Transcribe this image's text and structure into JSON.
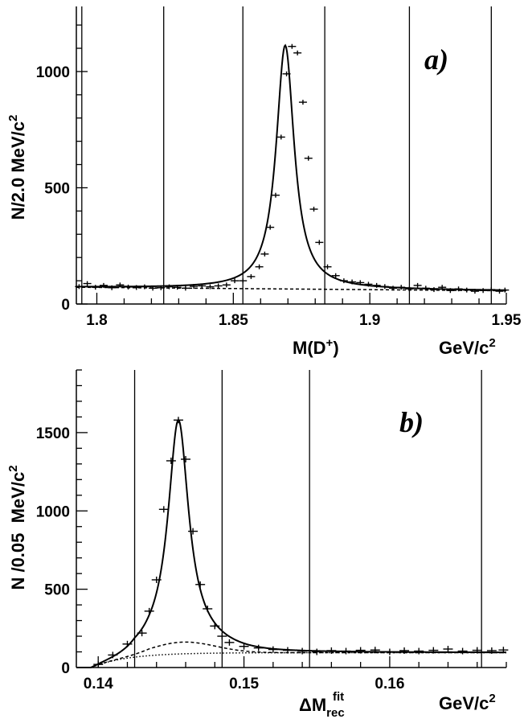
{
  "chart_data": [
    {
      "type": "scatter",
      "panel_label": "a)",
      "ylabel": "N/2.0 MeV/c",
      "ylabel_sup": "2",
      "xlabel_main": "M(D",
      "xlabel_sup": "+",
      "xlabel_close": ")",
      "xunit": "GeV/c",
      "xunit_sup": "2",
      "xlim": [
        1.7925,
        1.95
      ],
      "ylim": [
        0,
        1280
      ],
      "xticks": [
        1.8,
        1.85,
        1.9,
        1.95
      ],
      "xtick_labels": [
        "1.8",
        "1.85",
        "1.9",
        "1.95"
      ],
      "yticks": [
        0,
        500,
        1000
      ],
      "ytick_labels": [
        "0",
        "500",
        "1000"
      ],
      "vlines": [
        1.7945,
        1.8245,
        1.8535,
        1.8835,
        1.9145,
        1.9445
      ],
      "fit_params": {
        "peak": 1.869,
        "width": 0.0043,
        "amp": 1048,
        "bg_start": 72,
        "bg_end": 57
      },
      "series": [
        {
          "role": "data",
          "x": [
            1.7935,
            1.7965,
            1.7995,
            1.8025,
            1.8055,
            1.8085,
            1.8115,
            1.8145,
            1.8175,
            1.8205,
            1.8235,
            1.8265,
            1.8295,
            1.8325,
            1.8355,
            1.8385,
            1.8415,
            1.8445,
            1.8475,
            1.8505,
            1.8535,
            1.8565,
            1.8595,
            1.8615,
            1.8635,
            1.8655,
            1.8675,
            1.8695,
            1.8715,
            1.8735,
            1.8755,
            1.8775,
            1.8795,
            1.8815,
            1.8845,
            1.8875,
            1.8905,
            1.8935,
            1.8965,
            1.8995,
            1.9025,
            1.9055,
            1.9085,
            1.9115,
            1.9145,
            1.9175,
            1.9205,
            1.9235,
            1.9265,
            1.9295,
            1.9325,
            1.9355,
            1.9385,
            1.9415,
            1.9445,
            1.9475,
            1.9495
          ],
          "y": [
            75,
            88,
            72,
            80,
            70,
            82,
            73,
            71,
            74,
            68,
            70,
            74,
            72,
            68,
            76,
            78,
            74,
            78,
            82,
            100,
            100,
            118,
            160,
            215,
            330,
            468,
            718,
            990,
            1108,
            1080,
            868,
            627,
            408,
            265,
            160,
            122,
            100,
            95,
            92,
            85,
            80,
            75,
            68,
            72,
            65,
            80,
            68,
            62,
            72,
            58,
            65,
            60,
            55,
            58,
            62,
            55,
            60
          ]
        }
      ]
    },
    {
      "type": "scatter",
      "panel_label": "b)",
      "ylabel": "N /0.05  MeV/c",
      "ylabel_sup": "2",
      "xlabel_main": "ΔM",
      "xlabel_sup": "fit",
      "xlabel_sub": "rec",
      "xunit": "GeV/c",
      "xunit_sup": "2",
      "xlim": [
        0.1385,
        0.168
      ],
      "ylim": [
        0,
        1900
      ],
      "xticks": [
        0.14,
        0.15,
        0.16
      ],
      "xtick_labels": [
        "0.14",
        "0.15",
        "0.16"
      ],
      "yticks": [
        0,
        500,
        1000,
        1500
      ],
      "ytick_labels": [
        "0",
        "500",
        "1000",
        "1500"
      ],
      "vlines": [
        0.1425,
        0.1485,
        0.1545,
        0.1663
      ],
      "fit_params": {
        "threshold": 0.1395,
        "peak": 0.1455,
        "width": 0.00085,
        "amp": 1420,
        "bg_amp": 95,
        "bg_scale": 0.0025,
        "broad_amp": 75,
        "broad_center": 0.1458,
        "broad_sigma": 0.0022
      },
      "series": [
        {
          "role": "data",
          "x": [
            0.14,
            0.141,
            0.142,
            0.143,
            0.1435,
            0.144,
            0.1445,
            0.145,
            0.1455,
            0.146,
            0.1465,
            0.147,
            0.1475,
            0.148,
            0.1485,
            0.149,
            0.15,
            0.151,
            0.152,
            0.153,
            0.154,
            0.155,
            0.156,
            0.157,
            0.158,
            0.159,
            0.16,
            0.161,
            0.162,
            0.163,
            0.164,
            0.165,
            0.166,
            0.167,
            0.1678
          ],
          "y": [
            20,
            80,
            150,
            220,
            360,
            560,
            1010,
            1320,
            1580,
            1330,
            870,
            530,
            375,
            265,
            200,
            160,
            135,
            125,
            115,
            110,
            105,
            100,
            108,
            105,
            110,
            112,
            100,
            108,
            105,
            110,
            118,
            105,
            110,
            108,
            112
          ]
        }
      ]
    }
  ]
}
